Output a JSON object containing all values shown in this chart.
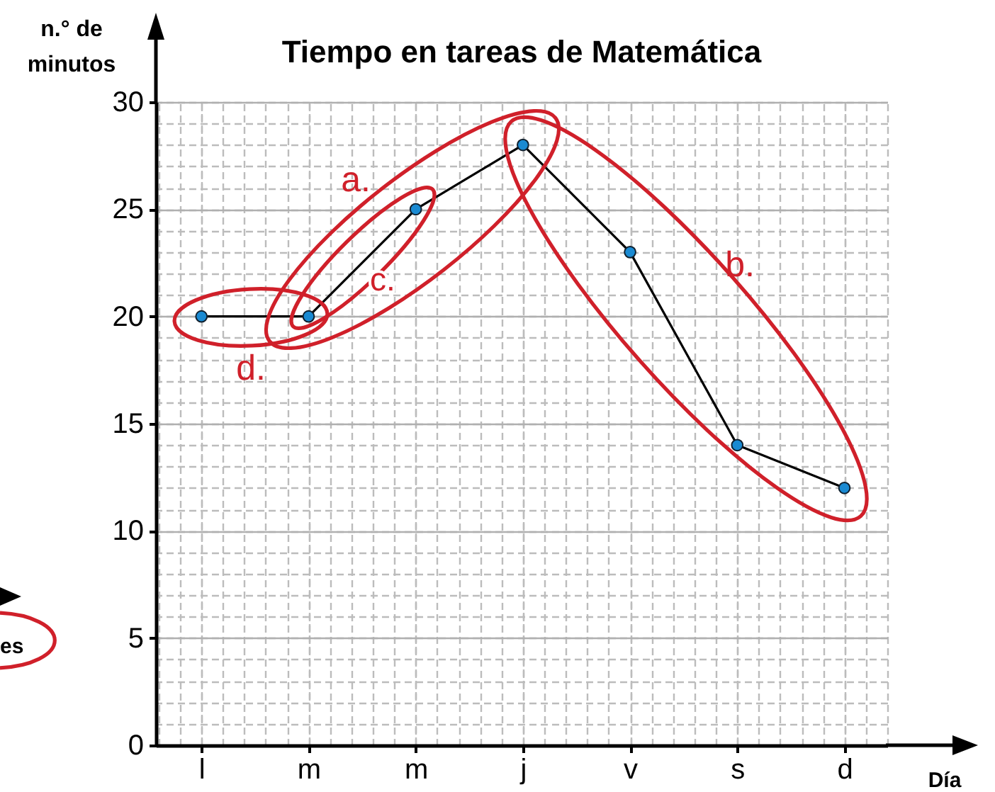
{
  "chart_data": {
    "type": "line",
    "title": "Tiempo en tareas de Matemática",
    "xlabel": "Día",
    "ylabel": "n.° de minutos",
    "categories": [
      "l",
      "m",
      "m",
      "j",
      "v",
      "s",
      "d"
    ],
    "values": [
      20,
      20,
      25,
      28,
      23,
      14,
      12
    ],
    "color": "#000000",
    "ylim": [
      0,
      30
    ],
    "yticks": [
      0,
      5,
      10,
      15,
      20,
      25,
      30
    ],
    "grid": true,
    "marker": "circle",
    "annotations": [
      "a.",
      "b.",
      "c.",
      "d.",
      "es"
    ]
  }
}
